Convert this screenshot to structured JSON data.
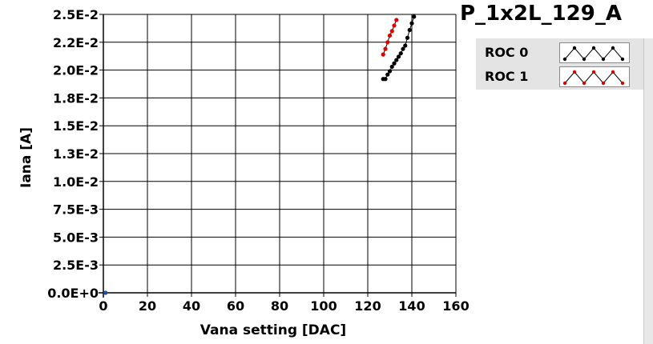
{
  "chart_data": {
    "type": "scatter",
    "title": "P_1x2L_129_A",
    "xlabel": "Vana setting [DAC]",
    "ylabel": "Iana [A]",
    "xlim": [
      0,
      160
    ],
    "ylim": [
      0,
      0.025
    ],
    "x_ticks": [
      0,
      20,
      40,
      60,
      80,
      100,
      120,
      140,
      160
    ],
    "x_tick_labels": [
      "0",
      "20",
      "40",
      "60",
      "80",
      "100",
      "120",
      "140",
      "160"
    ],
    "y_ticks": [
      0,
      0.0025,
      0.005,
      0.0075,
      0.01,
      0.0125,
      0.015,
      0.0175,
      0.02,
      0.0225,
      0.025
    ],
    "y_tick_labels": [
      "0.0E+0",
      "2.5E-3",
      "5.0E-3",
      "7.5E-3",
      "1.0E-2",
      "1.3E-2",
      "1.5E-2",
      "1.8E-2",
      "2.0E-2",
      "2.2E-2",
      "2.5E-2"
    ],
    "grid": true,
    "legend_position": "top-right",
    "series": [
      {
        "name": "ROC 0",
        "color": "#000000",
        "line": true,
        "x": [
          127,
          128,
          129,
          130,
          131,
          132,
          133,
          134,
          135,
          136,
          137,
          138,
          139,
          140,
          141
        ],
        "y": [
          0.0192,
          0.0192,
          0.0196,
          0.0199,
          0.0203,
          0.0206,
          0.0209,
          0.0212,
          0.0215,
          0.0219,
          0.0222,
          0.0229,
          0.0236,
          0.0242,
          0.0248
        ]
      },
      {
        "name": "ROC 1",
        "color": "#e00000",
        "line": true,
        "x": [
          127,
          128,
          129,
          130,
          131,
          132,
          133
        ],
        "y": [
          0.0214,
          0.0219,
          0.0225,
          0.0231,
          0.0235,
          0.024,
          0.0245
        ]
      },
      {
        "name": "",
        "color": "#1f4fa0",
        "line": false,
        "x": [
          1
        ],
        "y": [
          0
        ]
      }
    ]
  },
  "legend": {
    "items": [
      {
        "label": "ROC 0",
        "color": "#000000"
      },
      {
        "label": "ROC 1",
        "color": "#e00000"
      }
    ]
  },
  "colors": {
    "grid": "#000000",
    "plot_background": "#ffffff",
    "legend_background": "#e4e4e4"
  }
}
